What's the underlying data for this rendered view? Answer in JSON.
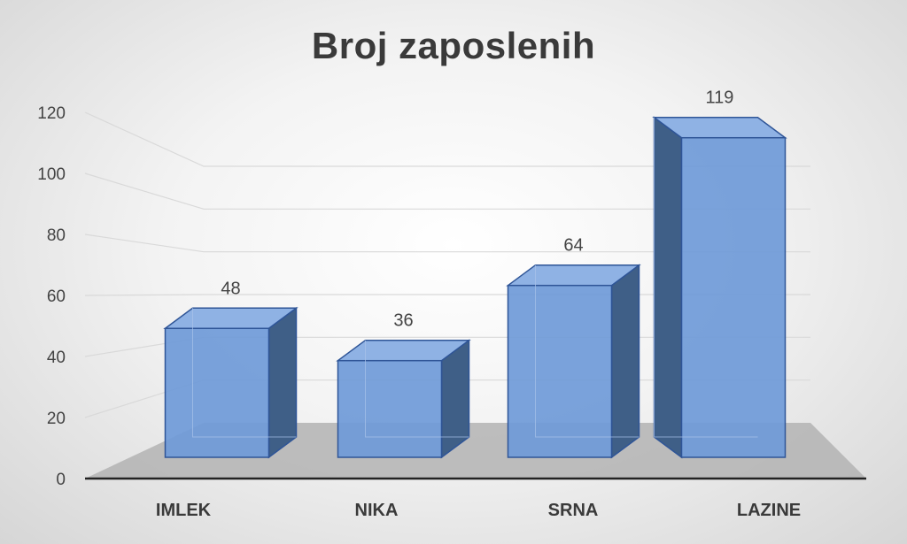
{
  "chart_data": {
    "type": "bar",
    "title": "Broj zaposlenih",
    "categories": [
      "IMLEK",
      "NIKA",
      "SRNA",
      "LAZINE"
    ],
    "values": [
      48,
      36,
      64,
      119
    ],
    "ylim": [
      0,
      120
    ],
    "yticks": [
      0,
      20,
      40,
      60,
      80,
      100,
      120
    ],
    "xlabel": "",
    "ylabel": "",
    "grid": true,
    "legend": "none",
    "data_labels": true,
    "style": "3d-column",
    "colors": {
      "bar_front": "#6f9ad8",
      "bar_side": "#3f5f87",
      "bar_top": "#8fb2e4",
      "bar_edge": "#2f5597",
      "floor": "#b3b3b3",
      "axis": "#222222"
    }
  }
}
